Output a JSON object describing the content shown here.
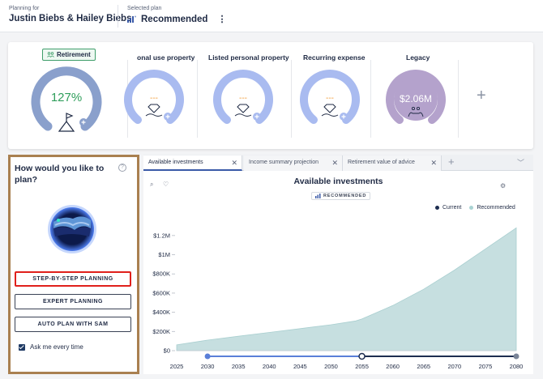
{
  "header": {
    "planning_for_label": "Planning for",
    "client_names": "Justin Biebs & Hailey Biebs",
    "selected_plan_label": "Selected plan",
    "selected_plan_value": "Recommended",
    "more_icon": "kebab-vertical-icon"
  },
  "goals": {
    "items": [
      {
        "title": "Retirement",
        "value": "127%",
        "percent": 127,
        "color": "#8aa0cc",
        "value_color": "#2f9e5b",
        "icon": "flag-mountain-icon",
        "badge": true
      },
      {
        "title": "onal use property",
        "value": "---",
        "color": "#a9bbf0",
        "value_color": "#f29c38",
        "icon": "diamond-hand-icon"
      },
      {
        "title": "Listed personal property",
        "value": "---",
        "color": "#a9bbf0",
        "value_color": "#f29c38",
        "icon": "diamond-hand-icon"
      },
      {
        "title": "Recurring expense",
        "value": "---",
        "color": "#a9bbf0",
        "value_color": "#f29c38",
        "icon": "diamond-hand-icon"
      },
      {
        "title": "Legacy",
        "value": "$2.06M",
        "color": "#b4a2cc",
        "value_color": "#ffffff",
        "icon": "family-hands-icon"
      }
    ],
    "add_icon": "plus-icon"
  },
  "planning": {
    "title": "How would you like to plan?",
    "help_icon": "question-circle-icon",
    "buttons": [
      "STEP-BY-STEP PLANNING",
      "EXPERT PLANNING",
      "AUTO PLAN WITH SAM"
    ],
    "active_button": 0,
    "checkbox_label": "Ask me every time",
    "checkbox_checked": true
  },
  "tabs": {
    "items": [
      {
        "label": "Available investments",
        "active": true
      },
      {
        "label": "Income summary projection",
        "active": false
      },
      {
        "label": "Retirement value of advice",
        "active": false
      }
    ],
    "close_icon": "close-icon",
    "add_icon": "plus-icon",
    "chevron_icon": "chevron-down-icon"
  },
  "chart": {
    "badge": "RECOMMENDED",
    "tools": [
      "zoom-icon",
      "heart-icon",
      "settings-icon"
    ],
    "colors": {
      "current": "#1d2d50",
      "recommended": "#a9d3d3",
      "area": "#c6dfe0",
      "slider": "#5a7fd8"
    }
  },
  "chart_data": {
    "type": "area",
    "title": "Available investments",
    "legend": [
      "Current",
      "Recommended"
    ],
    "legend_position": "top-right",
    "x_ticks": [
      2025,
      2030,
      2035,
      2040,
      2045,
      2050,
      2055,
      2060,
      2065,
      2070,
      2075,
      2080
    ],
    "y_ticks": [
      "$0",
      "$200K",
      "$400K",
      "$600K",
      "$800K",
      "$1M",
      "$1.2M"
    ],
    "y_tick_values": [
      0,
      200000,
      400000,
      600000,
      800000,
      1000000,
      1200000
    ],
    "ylim": [
      0,
      1300000
    ],
    "xlim": [
      2025,
      2080
    ],
    "series": [
      {
        "name": "Recommended",
        "x": [
          2025,
          2030,
          2035,
          2040,
          2045,
          2050,
          2054,
          2055,
          2060,
          2065,
          2070,
          2075,
          2080
        ],
        "values": [
          60000,
          110000,
          150000,
          190000,
          230000,
          270000,
          310000,
          330000,
          470000,
          640000,
          840000,
          1060000,
          1280000
        ]
      }
    ],
    "range_slider": {
      "start": 2030,
      "marker": 2055,
      "end": 2080
    }
  }
}
